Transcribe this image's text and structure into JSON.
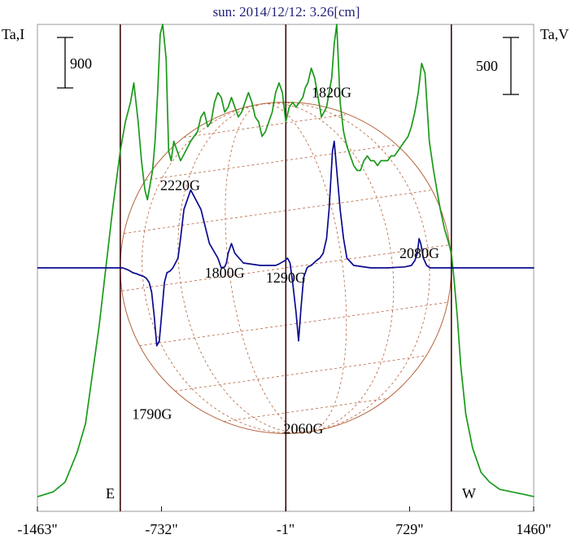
{
  "chart_data": {
    "type": "line",
    "title": "sun: 2014/12/12: 3.26[cm]",
    "left_axis_label": "Ta,I",
    "right_axis_label": "Ta,V",
    "left_scale_bar": "900",
    "right_scale_bar": "500",
    "x_tick_labels": [
      "-1463\"",
      "-732\"",
      "-1\"",
      "729\"",
      "1460\""
    ],
    "x_ticks": [
      -1463,
      -732,
      -1,
      729,
      1460
    ],
    "xlim": [
      -1463,
      1460
    ],
    "limb_labels": {
      "east": "E",
      "west": "W"
    },
    "limb_positions": [
      -975,
      975
    ],
    "colors": {
      "intensity": "#1a9a1a",
      "polarization": "#0a0a90",
      "disk": "#b5643c",
      "frame": "#3a0a0a"
    },
    "annotations": [
      {
        "text": "2220G",
        "x": -622,
        "level": 0.66
      },
      {
        "text": "1800G",
        "x": -360,
        "level": 0.48
      },
      {
        "text": "1290G",
        "x": 0,
        "level": 0.47
      },
      {
        "text": "1820G",
        "x": 269,
        "level": 0.85
      },
      {
        "text": "2080G",
        "x": 787,
        "level": 0.52
      },
      {
        "text": "1790G",
        "x": -788,
        "level": 0.19
      },
      {
        "text": "2060G",
        "x": 104,
        "level": 0.16
      }
    ],
    "series": [
      {
        "name": "Ta,I",
        "x": [
          -1463,
          -1370,
          -1300,
          -1230,
          -1180,
          -1100,
          -1060,
          -1020,
          -990,
          -975,
          -945,
          -915,
          -895,
          -870,
          -850,
          -830,
          -815,
          -800,
          -785,
          -770,
          -755,
          -740,
          -725,
          -705,
          -690,
          -675,
          -660,
          -640,
          -620,
          -605,
          -590,
          -575,
          -560,
          -540,
          -520,
          -500,
          -480,
          -460,
          -440,
          -420,
          -400,
          -380,
          -360,
          -340,
          -320,
          -300,
          -280,
          -260,
          -240,
          -220,
          -200,
          -180,
          -160,
          -140,
          -120,
          -100,
          -80,
          -60,
          -40,
          -20,
          0,
          20,
          40,
          60,
          80,
          100,
          115,
          130,
          150,
          170,
          190,
          210,
          225,
          240,
          255,
          270,
          285,
          300,
          320,
          340,
          360,
          380,
          400,
          420,
          440,
          460,
          480,
          500,
          520,
          540,
          560,
          580,
          600,
          620,
          640,
          660,
          680,
          700,
          720,
          740,
          760,
          780,
          800,
          820,
          845,
          870,
          890,
          910,
          935,
          960,
          975,
          990,
          1010,
          1030,
          1060,
          1100,
          1150,
          1200,
          1260,
          1330,
          1400,
          1463
        ],
        "y": [
          0.03,
          0.04,
          0.06,
          0.12,
          0.18,
          0.38,
          0.5,
          0.62,
          0.7,
          0.74,
          0.8,
          0.84,
          0.88,
          0.8,
          0.72,
          0.66,
          0.64,
          0.67,
          0.7,
          0.76,
          0.86,
          0.98,
          1.0,
          0.93,
          0.74,
          0.72,
          0.76,
          0.74,
          0.72,
          0.73,
          0.74,
          0.75,
          0.76,
          0.77,
          0.78,
          0.81,
          0.82,
          0.79,
          0.8,
          0.84,
          0.86,
          0.85,
          0.82,
          0.83,
          0.85,
          0.83,
          0.81,
          0.82,
          0.84,
          0.86,
          0.84,
          0.81,
          0.8,
          0.77,
          0.78,
          0.8,
          0.82,
          0.86,
          0.88,
          0.86,
          0.8,
          0.83,
          0.84,
          0.83,
          0.84,
          0.85,
          0.87,
          0.88,
          0.91,
          0.89,
          0.85,
          0.81,
          0.82,
          0.83,
          0.86,
          0.89,
          0.96,
          1.0,
          0.84,
          0.78,
          0.75,
          0.73,
          0.71,
          0.7,
          0.7,
          0.72,
          0.73,
          0.72,
          0.72,
          0.71,
          0.72,
          0.72,
          0.72,
          0.73,
          0.73,
          0.74,
          0.75,
          0.76,
          0.77,
          0.79,
          0.82,
          0.86,
          0.92,
          0.9,
          0.76,
          0.7,
          0.66,
          0.62,
          0.58,
          0.55,
          0.53,
          0.48,
          0.4,
          0.3,
          0.2,
          0.13,
          0.08,
          0.06,
          0.045,
          0.04,
          0.035,
          0.03
        ]
      },
      {
        "name": "Ta,V",
        "x": [
          -1463,
          -1100,
          -1000,
          -960,
          -930,
          -900,
          -880,
          -865,
          -850,
          -835,
          -820,
          -805,
          -790,
          -775,
          -760,
          -745,
          -730,
          -715,
          -700,
          -680,
          -665,
          -650,
          -635,
          -620,
          -600,
          -560,
          -500,
          -450,
          -400,
          -380,
          -360,
          -350,
          -340,
          -320,
          -300,
          -250,
          -150,
          -100,
          -60,
          -40,
          -20,
          -5,
          10,
          25,
          40,
          60,
          75,
          90,
          105,
          115,
          125,
          135,
          150,
          165,
          180,
          200,
          220,
          240,
          255,
          265,
          275,
          285,
          295,
          305,
          320,
          340,
          360,
          400,
          500,
          600,
          700,
          740,
          760,
          775,
          785,
          795,
          810,
          830,
          850,
          900,
          1000,
          1100,
          1463
        ],
        "y": [
          0.5,
          0.5,
          0.5,
          0.5,
          0.496,
          0.49,
          0.488,
          0.486,
          0.484,
          0.482,
          0.478,
          0.47,
          0.45,
          0.4,
          0.34,
          0.35,
          0.41,
          0.47,
          0.49,
          0.494,
          0.5,
          0.51,
          0.52,
          0.56,
          0.62,
          0.66,
          0.62,
          0.55,
          0.52,
          0.5,
          0.502,
          0.51,
          0.53,
          0.55,
          0.53,
          0.51,
          0.505,
          0.505,
          0.505,
          0.508,
          0.512,
          0.515,
          0.52,
          0.51,
          0.47,
          0.41,
          0.35,
          0.42,
          0.48,
          0.49,
          0.5,
          0.503,
          0.505,
          0.51,
          0.515,
          0.52,
          0.53,
          0.56,
          0.62,
          0.68,
          0.74,
          0.76,
          0.72,
          0.68,
          0.62,
          0.56,
          0.52,
          0.505,
          0.5,
          0.5,
          0.502,
          0.505,
          0.515,
          0.53,
          0.56,
          0.55,
          0.52,
          0.505,
          0.5,
          0.5,
          0.5,
          0.5,
          0.5
        ]
      }
    ]
  }
}
